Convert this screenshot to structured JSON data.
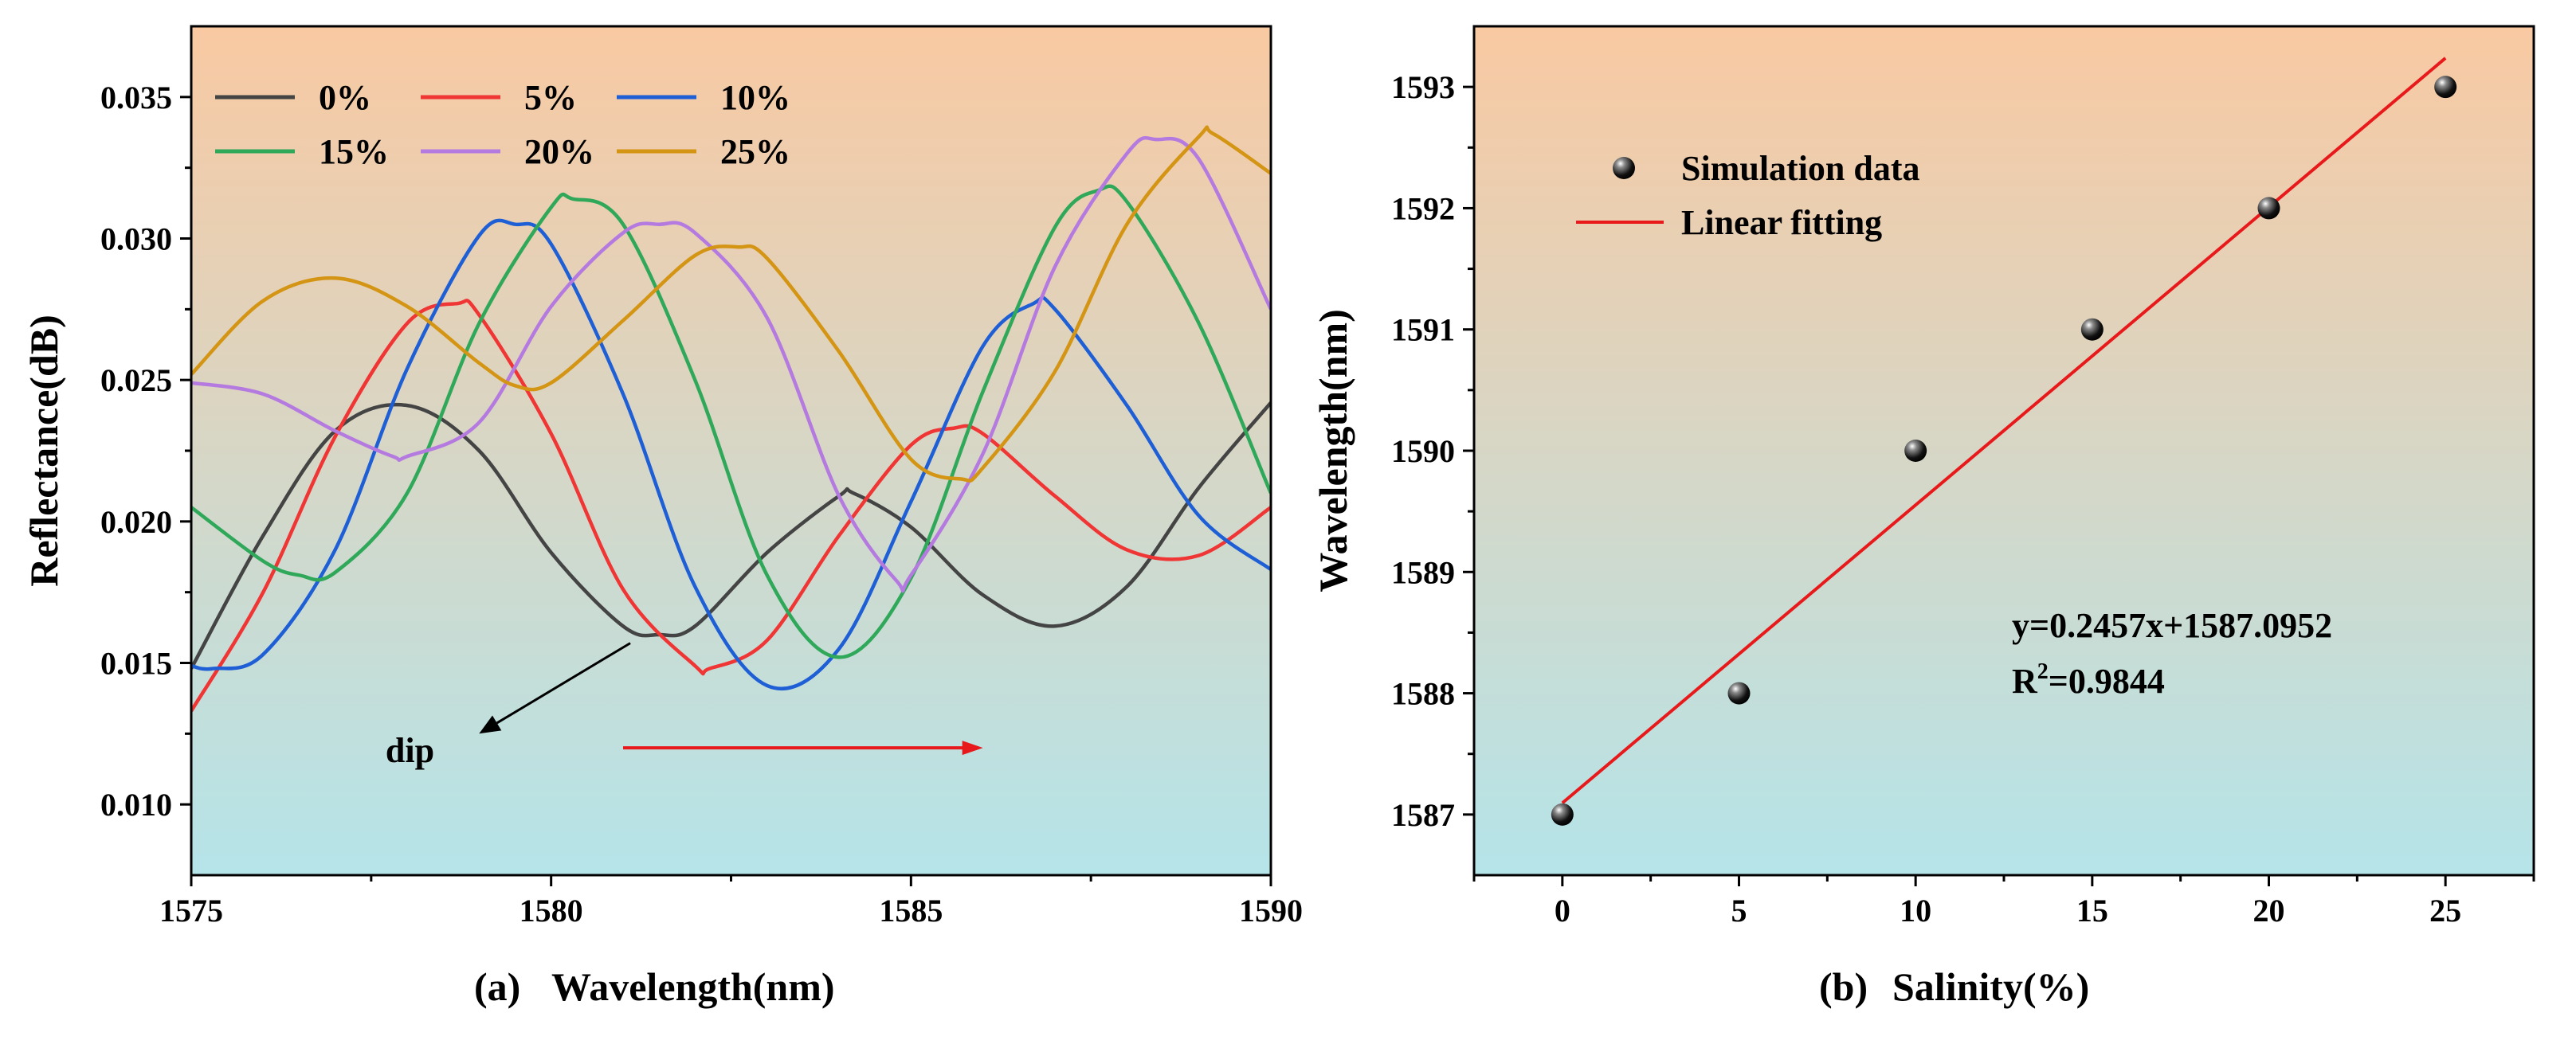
{
  "colors": {
    "bg_top": "#f9c9a2",
    "bg_bottom": "#b5e4e9",
    "axis": "#000000",
    "fit_line": "#e8191b",
    "arrow_black": "#000000",
    "arrow_red": "#e8191b"
  },
  "chart_data": [
    {
      "type": "line",
      "panel_label": "(a)",
      "title": "",
      "xlabel": "Wavelength(nm)",
      "ylabel": "Reflectance(dB)",
      "xlim": [
        1575,
        1590
      ],
      "ylim": [
        0.0075,
        0.0375
      ],
      "xticks": [
        1575,
        1580,
        1585,
        1590
      ],
      "xtick_labels": [
        "1575",
        "1580",
        "1585",
        "1590"
      ],
      "yticks": [
        0.01,
        0.015,
        0.02,
        0.025,
        0.03,
        0.035
      ],
      "ytick_labels": [
        "0.010",
        "0.015",
        "0.020",
        "0.025",
        "0.030",
        "0.035"
      ],
      "legend_position": "top-left",
      "series": [
        {
          "name": "0%",
          "color": "#444444",
          "x": [
            1575,
            1576,
            1577,
            1578,
            1579,
            1580,
            1581,
            1581.5,
            1582,
            1583,
            1584,
            1584.2,
            1585,
            1586,
            1587,
            1588,
            1589,
            1590
          ],
          "y": [
            0.0148,
            0.0195,
            0.0232,
            0.0241,
            0.0225,
            0.0189,
            0.0163,
            0.016,
            0.0163,
            0.0189,
            0.0209,
            0.021,
            0.0198,
            0.0174,
            0.0163,
            0.0177,
            0.0212,
            0.0242
          ]
        },
        {
          "name": "5%",
          "color": "#f03535",
          "x": [
            1575,
            1576,
            1577,
            1578,
            1578.7,
            1579,
            1580,
            1581,
            1582,
            1582.2,
            1583,
            1584,
            1585,
            1585.6,
            1586,
            1587,
            1588,
            1589,
            1590
          ],
          "y": [
            0.0133,
            0.0175,
            0.023,
            0.027,
            0.0277,
            0.0273,
            0.0231,
            0.0176,
            0.0149,
            0.0148,
            0.0158,
            0.0195,
            0.0227,
            0.0233,
            0.0231,
            0.0209,
            0.019,
            0.0188,
            0.0205
          ]
        },
        {
          "name": "10%",
          "color": "#1f5fd6",
          "x": [
            1575,
            1575.3,
            1576,
            1577,
            1578,
            1579,
            1579.5,
            1580,
            1581,
            1582,
            1583,
            1584,
            1585,
            1586,
            1586.7,
            1587,
            1588,
            1589,
            1590
          ],
          "y": [
            0.0149,
            0.0148,
            0.0153,
            0.019,
            0.0254,
            0.0301,
            0.0305,
            0.0298,
            0.0245,
            0.0177,
            0.0142,
            0.0155,
            0.0207,
            0.0262,
            0.0277,
            0.0275,
            0.0241,
            0.0202,
            0.0183
          ]
        },
        {
          "name": "15%",
          "color": "#2fa85a",
          "x": [
            1575,
            1576,
            1576.5,
            1577,
            1578,
            1579,
            1580,
            1580.3,
            1581,
            1582,
            1583,
            1584,
            1585,
            1586,
            1587,
            1587.6,
            1588,
            1589,
            1590
          ],
          "y": [
            0.0205,
            0.0186,
            0.0181,
            0.0182,
            0.021,
            0.027,
            0.0311,
            0.0314,
            0.0305,
            0.025,
            0.0181,
            0.0152,
            0.018,
            0.0246,
            0.0304,
            0.0317,
            0.0313,
            0.027,
            0.021
          ]
        },
        {
          "name": "20%",
          "color": "#b57ae0",
          "x": [
            1575,
            1576,
            1577,
            1577.8,
            1578,
            1579,
            1580,
            1581,
            1581.5,
            1582,
            1583,
            1584,
            1584.8,
            1585,
            1586,
            1587,
            1588,
            1588.4,
            1589,
            1590
          ],
          "y": [
            0.0249,
            0.0245,
            0.0232,
            0.0223,
            0.0223,
            0.0235,
            0.0276,
            0.0302,
            0.0305,
            0.0302,
            0.0272,
            0.0209,
            0.0179,
            0.0181,
            0.0224,
            0.029,
            0.033,
            0.0335,
            0.0328,
            0.0275
          ]
        },
        {
          "name": "25%",
          "color": "#d49514",
          "x": [
            1575,
            1576,
            1577,
            1578,
            1579,
            1579.5,
            1580,
            1581,
            1582,
            1582.6,
            1583,
            1584,
            1585,
            1585.7,
            1586,
            1587,
            1588,
            1589,
            1589.2,
            1590
          ],
          "y": [
            0.0252,
            0.0278,
            0.0286,
            0.0276,
            0.0256,
            0.0248,
            0.0249,
            0.0271,
            0.0294,
            0.0297,
            0.0293,
            0.026,
            0.0222,
            0.0215,
            0.0219,
            0.0253,
            0.0305,
            0.0336,
            0.0337,
            0.0323
          ]
        }
      ],
      "annotations": [
        {
          "text": "dip",
          "kind": "black-arrow",
          "from": [
            1581.1,
            0.0157
          ],
          "to": [
            1579.0,
            0.0125
          ],
          "label_at": [
            1577.7,
            0.0115
          ]
        },
        {
          "kind": "red-arrow",
          "from": [
            1581.0,
            0.012
          ],
          "to": [
            1586.0,
            0.012
          ]
        }
      ]
    },
    {
      "type": "scatter",
      "panel_label": "(b)",
      "title": "",
      "xlabel": "Salinity(%)",
      "ylabel": "Wavelength(nm)",
      "xlim": [
        -2.5,
        27.5
      ],
      "ylim": [
        1586.5,
        1593.5
      ],
      "xticks": [
        0,
        5,
        10,
        15,
        20,
        25
      ],
      "xtick_labels": [
        "0",
        "5",
        "10",
        "15",
        "20",
        "25"
      ],
      "yticks": [
        1587,
        1588,
        1589,
        1590,
        1591,
        1592,
        1593
      ],
      "ytick_labels": [
        "1587",
        "1588",
        "1589",
        "1590",
        "1591",
        "1592",
        "1593"
      ],
      "legend_position": "top-left",
      "series": [
        {
          "name": "Simulation data",
          "kind": "scatter",
          "color": "#000000",
          "x": [
            0,
            5,
            10,
            15,
            20,
            25
          ],
          "y": [
            1587,
            1588,
            1590,
            1591,
            1592,
            1593
          ]
        },
        {
          "name": "Linear fitting",
          "kind": "line",
          "color": "#e8191b",
          "slope": 0.2457,
          "intercept": 1587.0952,
          "x": [
            0,
            25
          ],
          "y": [
            1587.0952,
            1593.2377
          ]
        }
      ],
      "equation_text": "y=0.2457x+1587.0952",
      "r2_prefix": "R",
      "r2_sup": "2",
      "r2_value": "=0.9844"
    }
  ]
}
